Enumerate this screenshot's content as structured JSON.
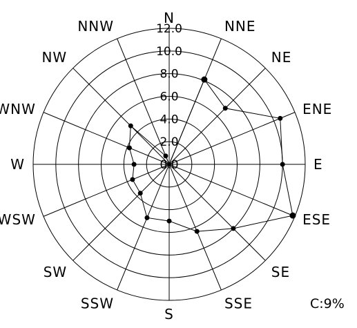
{
  "chart_data": {
    "type": "radar",
    "title": "",
    "directions": [
      "N",
      "NNE",
      "NE",
      "ENE",
      "E",
      "ESE",
      "SE",
      "SSE",
      "S",
      "SSW",
      "SW",
      "WSW",
      "W",
      "WNW",
      "NW",
      "NNW"
    ],
    "rings": [
      2.0,
      4.0,
      6.0,
      8.0,
      10.0,
      12.0
    ],
    "ring_labels": [
      "0.0",
      "2.0",
      "4.0",
      "6.0",
      "8.0",
      "10.0",
      "12.0"
    ],
    "rmax": 12.0,
    "series": [
      {
        "values": [
          0.0,
          8.1,
          7.0,
          10.6,
          10.0,
          11.8,
          8.0,
          6.4,
          5.0,
          5.1,
          3.6,
          3.5,
          3.1,
          3.8,
          4.8,
          0.8
        ]
      }
    ],
    "calm": "C:9%",
    "grid": true,
    "legend": "none"
  },
  "colors": {
    "background": "#ffffff",
    "grid": "#000000",
    "series": "#000000"
  }
}
